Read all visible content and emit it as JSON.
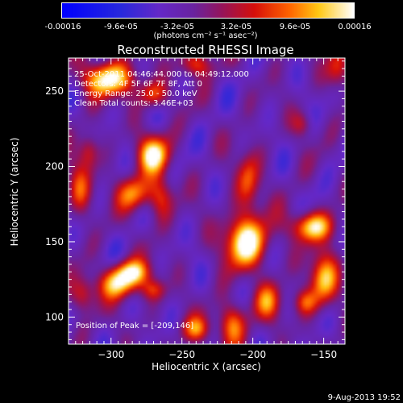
{
  "colorbar": {
    "tick_labels": [
      "-0.00016",
      "-9.6e-05",
      "-3.2e-05",
      "3.2e-05",
      "9.6e-05",
      "0.00016"
    ],
    "units": "(photons cm⁻² s⁻¹ asec⁻²)",
    "range": [
      -0.00016,
      0.00016
    ]
  },
  "chart_data": {
    "type": "heatmap",
    "title": "Reconstructed RHESSI Image",
    "xlabel": "Heliocentric X (arcsec)",
    "ylabel": "Heliocentric Y (arcsec)",
    "xlim": [
      -330,
      -135
    ],
    "ylim": [
      82,
      272
    ],
    "xticks": [
      -300,
      -250,
      -200,
      -150
    ],
    "xtick_labels": [
      "−300",
      "−250",
      "−200",
      "−150"
    ],
    "yticks": [
      100,
      150,
      200,
      250
    ],
    "ytick_labels": [
      "100",
      "150",
      "200",
      "250"
    ],
    "annotations": [
      "25-Oct-2011 04:46:44.000 to 04:49:12.000",
      "Detectors: 4F 5F 6F 7F 8F, Att 0",
      "Energy Range: 25.0 - 50.0 keV",
      "Clean     Total counts: 3.46E+03"
    ],
    "peak_label": "Position of Peak = [-209,146]",
    "peak": [
      -209,
      146
    ],
    "sources": [
      {
        "x": -205,
        "y": 150,
        "amp": 1.0,
        "sx": 11,
        "sy": 12
      },
      {
        "x": -203,
        "y": 190,
        "amp": 0.55,
        "sx": 6,
        "sy": 14
      },
      {
        "x": -270,
        "y": 208,
        "amp": 0.9,
        "sx": 8,
        "sy": 9
      },
      {
        "x": -283,
        "y": 182,
        "amp": 0.65,
        "sx": 9,
        "sy": 8
      },
      {
        "x": -265,
        "y": 180,
        "amp": 0.45,
        "sx": 6,
        "sy": 10
      },
      {
        "x": -302,
        "y": 258,
        "amp": 0.95,
        "sx": 13,
        "sy": 8
      },
      {
        "x": -270,
        "y": 248,
        "amp": 0.55,
        "sx": 7,
        "sy": 6
      },
      {
        "x": -240,
        "y": 268,
        "amp": 0.55,
        "sx": 8,
        "sy": 6
      },
      {
        "x": -285,
        "y": 130,
        "amp": 0.75,
        "sx": 9,
        "sy": 6
      },
      {
        "x": -295,
        "y": 122,
        "amp": 0.75,
        "sx": 10,
        "sy": 7
      },
      {
        "x": -320,
        "y": 115,
        "amp": 0.5,
        "sx": 6,
        "sy": 8
      },
      {
        "x": -322,
        "y": 185,
        "amp": 0.5,
        "sx": 6,
        "sy": 12
      },
      {
        "x": -316,
        "y": 210,
        "amp": 0.45,
        "sx": 5,
        "sy": 8
      },
      {
        "x": -158,
        "y": 160,
        "amp": 0.85,
        "sx": 11,
        "sy": 7
      },
      {
        "x": -150,
        "y": 125,
        "amp": 0.8,
        "sx": 7,
        "sy": 12
      },
      {
        "x": -163,
        "y": 110,
        "amp": 0.5,
        "sx": 6,
        "sy": 6
      },
      {
        "x": -190,
        "y": 110,
        "amp": 0.55,
        "sx": 7,
        "sy": 9
      },
      {
        "x": -215,
        "y": 95,
        "amp": 0.65,
        "sx": 7,
        "sy": 10
      },
      {
        "x": -240,
        "y": 92,
        "amp": 0.55,
        "sx": 7,
        "sy": 6
      },
      {
        "x": -270,
        "y": 118,
        "amp": 0.45,
        "sx": 6,
        "sy": 5
      },
      {
        "x": -140,
        "y": 265,
        "amp": 0.5,
        "sx": 6,
        "sy": 10
      },
      {
        "x": -165,
        "y": 228,
        "amp": 0.35,
        "sx": 5,
        "sy": 6
      }
    ]
  },
  "footer": {
    "timestamp": "9-Aug-2013 19:52"
  }
}
